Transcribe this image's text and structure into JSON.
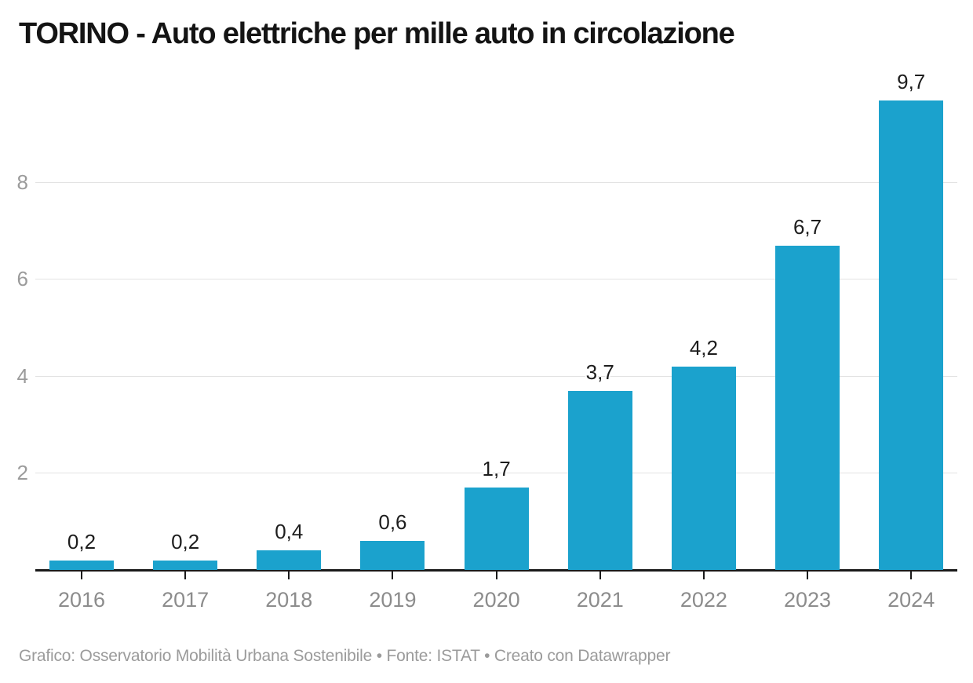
{
  "chart_data": {
    "type": "bar",
    "title": "TORINO - Auto elettriche per mille auto in circolazione",
    "categories": [
      "2016",
      "2017",
      "2018",
      "2019",
      "2020",
      "2021",
      "2022",
      "2023",
      "2024"
    ],
    "values": [
      0.2,
      0.2,
      0.4,
      0.6,
      1.7,
      3.7,
      4.2,
      6.7,
      9.7
    ],
    "value_labels": [
      "0,2",
      "0,2",
      "0,4",
      "0,6",
      "1,7",
      "3,7",
      "4,2",
      "6,7",
      "9,7"
    ],
    "xlabel": "",
    "ylabel": "",
    "ylim": [
      0,
      10
    ],
    "y_ticks": [
      2,
      4,
      6,
      8
    ],
    "grid": "horizontal",
    "legend": "none",
    "bar_color": "#1ba2cd"
  },
  "colors": {
    "bar": "#1ba2cd",
    "title": "#141414",
    "value_label": "#1d1d1d",
    "axis_label": "#8c8c8c",
    "y_tick_label": "#9b9b9b",
    "gridline": "#e3e3e3",
    "axis_line": "#1a1a1a",
    "footer": "#9b9b9b"
  },
  "footer": {
    "text": "Grafico: Osservatorio Mobilità Urbana Sostenibile • Fonte: ISTAT • Creato con Datawrapper"
  }
}
